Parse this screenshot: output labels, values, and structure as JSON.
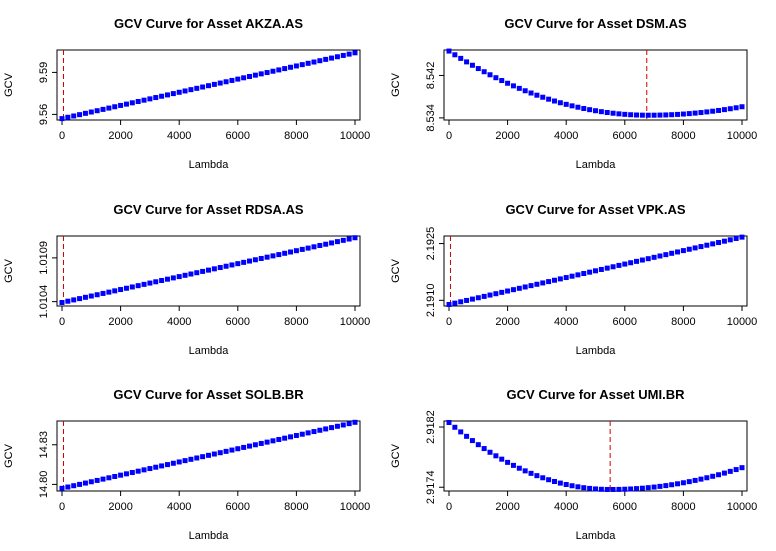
{
  "colors": {
    "points": "#0000ff",
    "vline": "#cc0000",
    "axis": "#000000"
  },
  "chart_data": [
    {
      "type": "scatter",
      "title": "GCV Curve for Asset AKZA.AS",
      "xlabel": "Lambda",
      "ylabel": "GCV",
      "xlim": [
        0,
        10000
      ],
      "ylim": [
        9.556,
        9.606
      ],
      "xticks": [
        "0",
        "2000",
        "4000",
        "6000",
        "8000",
        "10000"
      ],
      "yticks": [
        {
          "v": 9.56,
          "label": "9.56"
        },
        {
          "v": 9.59,
          "label": "9.59"
        }
      ],
      "shape": "linear",
      "y_start": 9.557,
      "y_end": 9.604,
      "vline_x": 50
    },
    {
      "type": "scatter",
      "title": "GCV Curve for Asset DSM.AS",
      "xlabel": "Lambda",
      "ylabel": "GCV",
      "xlim": [
        0,
        10000
      ],
      "ylim": [
        8.5336,
        8.5468
      ],
      "xticks": [
        "0",
        "2000",
        "4000",
        "6000",
        "8000",
        "10000"
      ],
      "yticks": [
        {
          "v": 8.534,
          "label": "8.534"
        },
        {
          "v": 8.542,
          "label": "8.542"
        }
      ],
      "shape": "quadratic",
      "y_start": 8.5466,
      "y_min": 8.5345,
      "x_min": 6800,
      "y_end": 8.5361,
      "vline_x": 6750
    },
    {
      "type": "scatter",
      "title": "GCV Curve for Asset RDSA.AS",
      "xlabel": "Lambda",
      "ylabel": "GCV",
      "xlim": [
        0,
        10000
      ],
      "ylim": [
        1.01035,
        1.01115
      ],
      "xticks": [
        "0",
        "2000",
        "4000",
        "6000",
        "8000",
        "10000"
      ],
      "yticks": [
        {
          "v": 1.0104,
          "label": "1.0104"
        },
        {
          "v": 1.0109,
          "label": "1.0109"
        }
      ],
      "shape": "linear",
      "y_start": 1.01039,
      "y_end": 1.01113,
      "vline_x": 50
    },
    {
      "type": "scatter",
      "title": "GCV Curve for Asset VPK.AS",
      "xlabel": "Lambda",
      "ylabel": "GCV",
      "xlim": [
        0,
        10000
      ],
      "ylim": [
        2.19085,
        2.1927
      ],
      "xticks": [
        "0",
        "2000",
        "4000",
        "6000",
        "8000",
        "10000"
      ],
      "yticks": [
        {
          "v": 2.191,
          "label": "2.1910"
        },
        {
          "v": 2.1925,
          "label": "2.1925"
        }
      ],
      "shape": "linear",
      "y_start": 2.19089,
      "y_end": 2.19267,
      "vline_x": 50
    },
    {
      "type": "scatter",
      "title": "GCV Curve for Asset SOLB.BR",
      "xlabel": "Lambda",
      "ylabel": "GCV",
      "xlim": [
        0,
        10000
      ],
      "ylim": [
        14.795,
        14.848
      ],
      "xticks": [
        "0",
        "2000",
        "4000",
        "6000",
        "8000",
        "10000"
      ],
      "yticks": [
        {
          "v": 14.8,
          "label": "14.80"
        },
        {
          "v": 14.83,
          "label": "14.83"
        }
      ],
      "shape": "linear",
      "y_start": 14.797,
      "y_end": 14.847,
      "vline_x": 50
    },
    {
      "type": "scatter",
      "title": "GCV Curve for Asset UMI.BR",
      "xlabel": "Lambda",
      "ylabel": "GCV",
      "xlim": [
        0,
        10000
      ],
      "ylim": [
        2.91735,
        2.91828
      ],
      "xticks": [
        "0",
        "2000",
        "4000",
        "6000",
        "8000",
        "10000"
      ],
      "yticks": [
        {
          "v": 2.9174,
          "label": "2.9174"
        },
        {
          "v": 2.9182,
          "label": "2.9182"
        }
      ],
      "shape": "quadratic",
      "y_start": 2.91826,
      "y_min": 2.91737,
      "x_min": 5500,
      "y_end": 2.91766,
      "vline_x": 5500
    }
  ]
}
